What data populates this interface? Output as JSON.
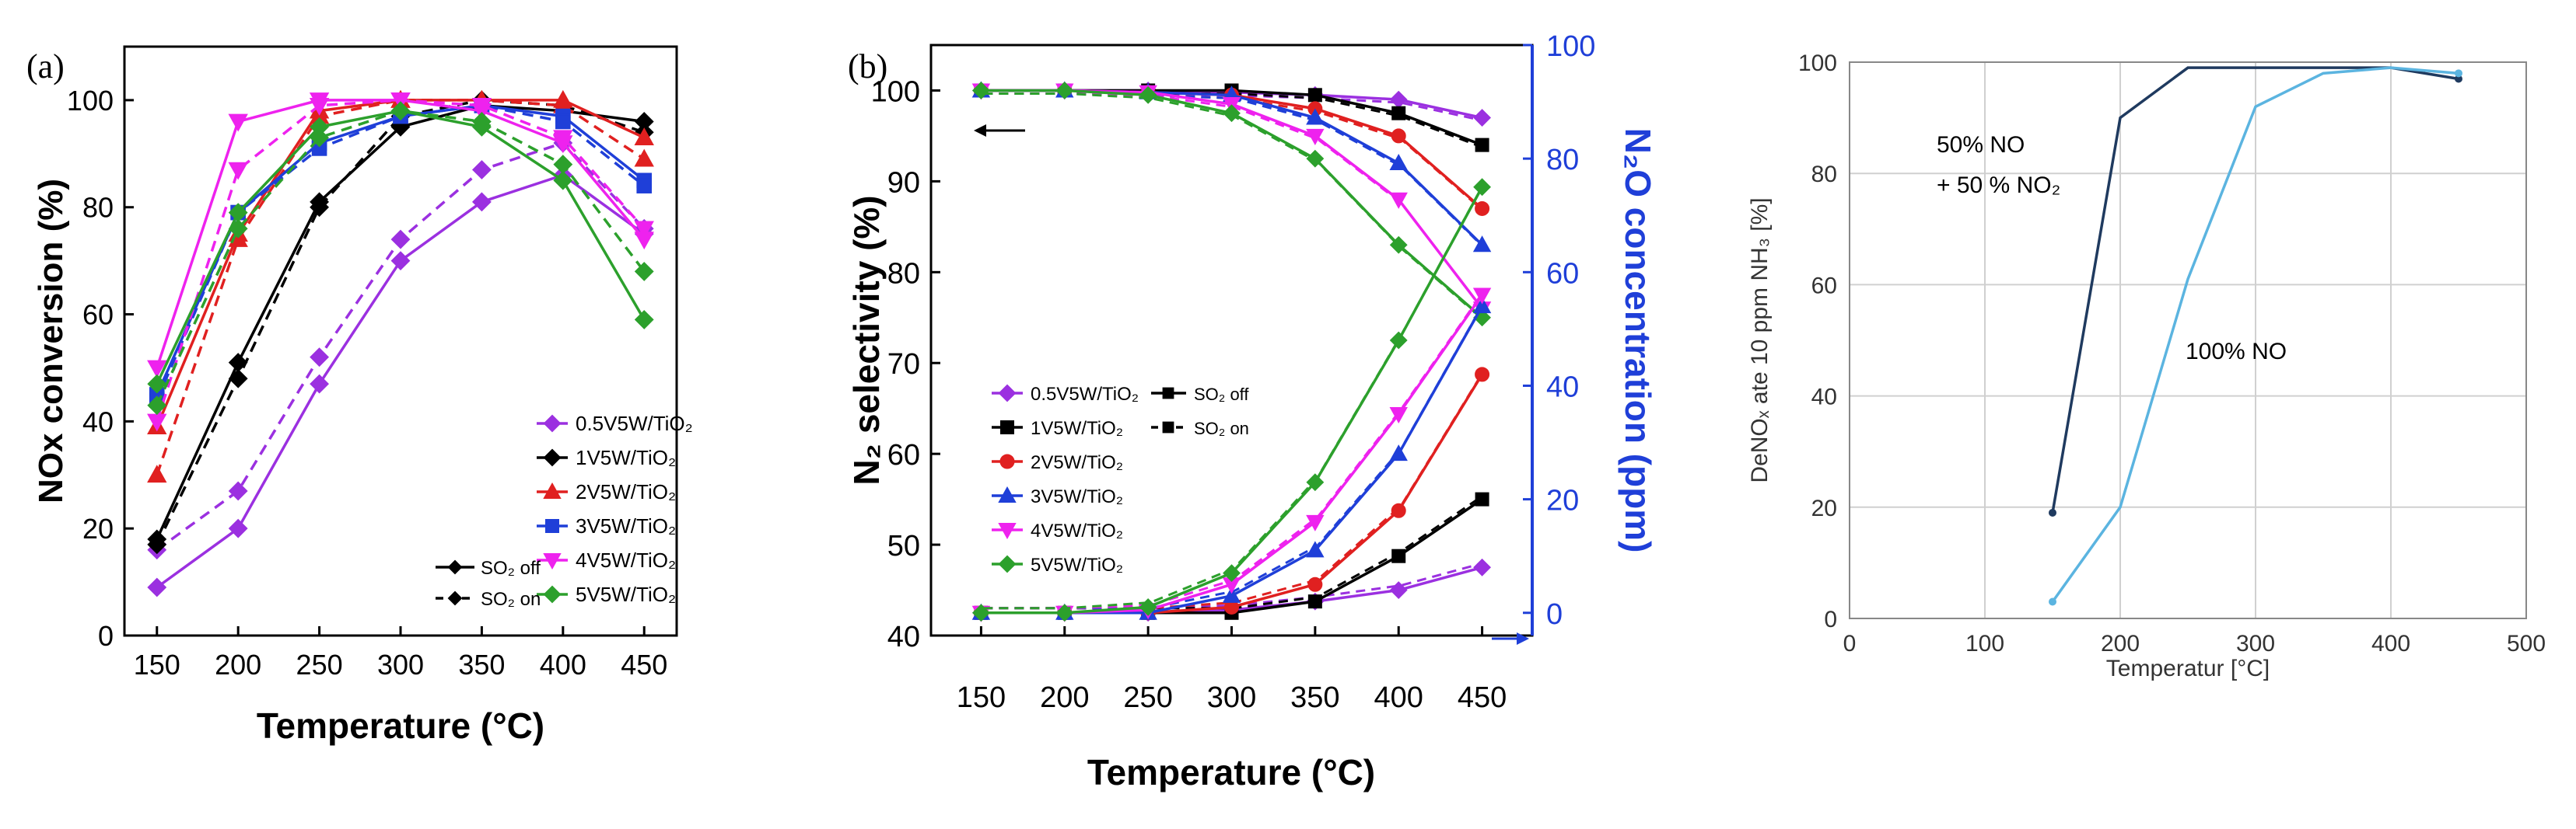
{
  "chart_data": [
    {
      "type": "line",
      "panel_label": "(a)",
      "xlabel": "Temperature (°C)",
      "ylabel": "NOx conversion (%)",
      "xlim": [
        130,
        470
      ],
      "ylim": [
        0,
        110
      ],
      "x": [
        150,
        200,
        250,
        300,
        350,
        400,
        450
      ],
      "xticks": [
        "150",
        "200",
        "250",
        "300",
        "350",
        "400",
        "450"
      ],
      "yticks": [
        "0",
        "20",
        "40",
        "60",
        "80",
        "100"
      ],
      "legend_position": "bottom-right",
      "style_legend": [
        {
          "name": "SO₂ off",
          "dash": "solid"
        },
        {
          "name": "SO₂ on",
          "dash": "dashed"
        }
      ],
      "series": [
        {
          "name": "0.5V5W/TiO₂",
          "color": "#9b30e0",
          "marker": "diamond",
          "condition": "SO₂ off",
          "values": [
            9,
            20,
            47,
            70,
            81,
            86,
            75
          ]
        },
        {
          "name": "0.5V5W/TiO₂",
          "color": "#9b30e0",
          "marker": "diamond",
          "condition": "SO₂ on",
          "values": [
            16,
            27,
            52,
            74,
            87,
            92,
            76
          ]
        },
        {
          "name": "1V5W/TiO₂",
          "color": "#000000",
          "marker": "diamond",
          "condition": "SO₂ off",
          "values": [
            18,
            51,
            81,
            95,
            99,
            98,
            96
          ]
        },
        {
          "name": "1V5W/TiO₂",
          "color": "#000000",
          "marker": "diamond",
          "condition": "SO₂ on",
          "values": [
            17,
            48,
            80,
            97,
            100,
            99,
            94
          ]
        },
        {
          "name": "2V5W/TiO₂",
          "color": "#e02020",
          "marker": "triangle-up",
          "condition": "SO₂ off",
          "values": [
            39,
            75,
            98,
            100,
            100,
            100,
            93
          ]
        },
        {
          "name": "2V5W/TiO₂",
          "color": "#e02020",
          "marker": "triangle-up",
          "condition": "SO₂ on",
          "values": [
            30,
            74,
            97,
            100,
            100,
            99,
            89
          ]
        },
        {
          "name": "3V5W/TiO₂",
          "color": "#1f3fd8",
          "marker": "square",
          "condition": "SO₂ off",
          "values": [
            45,
            79,
            92,
            97,
            99,
            97,
            85
          ]
        },
        {
          "name": "3V5W/TiO₂",
          "color": "#1f3fd8",
          "marker": "square",
          "condition": "SO₂ on",
          "values": [
            44,
            79,
            91,
            97,
            99,
            96,
            84
          ]
        },
        {
          "name": "4V5W/TiO₂",
          "color": "#ee22ee",
          "marker": "triangle-down",
          "condition": "SO₂ off",
          "values": [
            50,
            96,
            100,
            100,
            98,
            92,
            74
          ]
        },
        {
          "name": "4V5W/TiO₂",
          "color": "#ee22ee",
          "marker": "triangle-down",
          "condition": "SO₂ on",
          "values": [
            40,
            87,
            99,
            100,
            99,
            93,
            76
          ]
        },
        {
          "name": "5V5W/TiO₂",
          "color": "#2ca02c",
          "marker": "diamond",
          "condition": "SO₂ off",
          "values": [
            47,
            79,
            95,
            98,
            95,
            85,
            59
          ]
        },
        {
          "name": "5V5W/TiO₂",
          "color": "#2ca02c",
          "marker": "diamond",
          "condition": "SO₂ on",
          "values": [
            43,
            76,
            93,
            98,
            96,
            88,
            68
          ]
        }
      ]
    },
    {
      "type": "line",
      "panel_label": "(b)",
      "xlabel": "Temperature (°C)",
      "ylabel_left": "N₂ selectivity (%)",
      "ylabel_right": "N₂O concentration (ppm)",
      "xlim": [
        120,
        480
      ],
      "ylim_left": [
        40,
        105
      ],
      "ylim_right": [
        -4,
        100
      ],
      "x": [
        150,
        200,
        250,
        300,
        350,
        400,
        450
      ],
      "xticks": [
        "150",
        "200",
        "250",
        "300",
        "350",
        "400",
        "450"
      ],
      "yticks_left": [
        "40",
        "50",
        "60",
        "70",
        "80",
        "90",
        "100"
      ],
      "yticks_right": [
        "0",
        "20",
        "40",
        "60",
        "80",
        "100"
      ],
      "legend_position": "center-left",
      "style_legend": [
        {
          "name": "SO₂ off",
          "dash": "solid"
        },
        {
          "name": "SO₂ on",
          "dash": "dashed"
        }
      ],
      "series": [
        {
          "name": "0.5V5W/TiO₂",
          "axis": "left",
          "color": "#9b30e0",
          "marker": "diamond",
          "values": [
            100,
            100,
            100,
            99.8,
            99.5,
            99,
            97
          ]
        },
        {
          "name": "1V5W/TiO₂",
          "axis": "left",
          "color": "#000000",
          "marker": "square",
          "values": [
            100,
            100,
            100,
            100,
            99.5,
            97.5,
            94
          ]
        },
        {
          "name": "2V5W/TiO₂",
          "axis": "left",
          "color": "#e02020",
          "marker": "circle",
          "values": [
            100,
            100,
            99.8,
            99.5,
            98,
            95,
            87
          ]
        },
        {
          "name": "3V5W/TiO₂",
          "axis": "left",
          "color": "#1f3fd8",
          "marker": "triangle-up",
          "values": [
            100,
            100,
            99.8,
            99.5,
            97,
            92,
            83
          ]
        },
        {
          "name": "4V5W/TiO₂",
          "axis": "left",
          "color": "#ee22ee",
          "marker": "triangle-down",
          "values": [
            100,
            100,
            99.8,
            98.5,
            95,
            88,
            76
          ]
        },
        {
          "name": "5V5W/TiO₂",
          "axis": "left",
          "color": "#2ca02c",
          "marker": "diamond",
          "values": [
            100,
            100,
            99.5,
            97.5,
            92.5,
            83,
            75
          ]
        },
        {
          "name": "0.5V5W/TiO₂",
          "axis": "right",
          "color": "#9b30e0",
          "marker": "diamond",
          "values": [
            0,
            0,
            0,
            0.5,
            2,
            4,
            8
          ]
        },
        {
          "name": "1V5W/TiO₂",
          "axis": "right",
          "color": "#000000",
          "marker": "square",
          "values": [
            0,
            0,
            0,
            0,
            2,
            10,
            20
          ]
        },
        {
          "name": "2V5W/TiO₂",
          "axis": "right",
          "color": "#e02020",
          "marker": "circle",
          "values": [
            0,
            0,
            0,
            1,
            5,
            18,
            42
          ]
        },
        {
          "name": "3V5W/TiO₂",
          "axis": "right",
          "color": "#1f3fd8",
          "marker": "triangle-up",
          "values": [
            0,
            0,
            0,
            3,
            11,
            28,
            54
          ]
        },
        {
          "name": "4V5W/TiO₂",
          "axis": "right",
          "color": "#ee22ee",
          "marker": "triangle-down",
          "values": [
            0,
            0,
            0.5,
            5,
            16,
            35,
            56
          ]
        },
        {
          "name": "5V5W/TiO₂",
          "axis": "right",
          "color": "#2ca02c",
          "marker": "diamond",
          "values": [
            0,
            0,
            1,
            7,
            23,
            48,
            75
          ]
        }
      ]
    },
    {
      "type": "line",
      "xlabel": "Temperatur [°C]",
      "ylabel": "DeNOₓ ate 10 ppm NH₃ [%]",
      "xlim": [
        0,
        500
      ],
      "ylim": [
        0,
        100
      ],
      "xticks": [
        "0",
        "100",
        "200",
        "300",
        "400",
        "500"
      ],
      "yticks": [
        "0",
        "20",
        "40",
        "60",
        "80",
        "100"
      ],
      "grid": true,
      "series": [
        {
          "name": "50% NO + 50 % NO₂",
          "color": "#1f3a5f",
          "x": [
            150,
            200,
            250,
            300,
            400,
            450
          ],
          "values": [
            19,
            90,
            99,
            99,
            99,
            97
          ]
        },
        {
          "name": "100% NO",
          "color": "#5bb4e0",
          "x": [
            150,
            200,
            250,
            300,
            350,
            400,
            450
          ],
          "values": [
            3,
            20,
            61,
            92,
            98,
            99,
            98
          ]
        }
      ],
      "annotations": [
        "50% NO",
        "+ 50 % NO₂",
        "100% NO"
      ]
    }
  ]
}
